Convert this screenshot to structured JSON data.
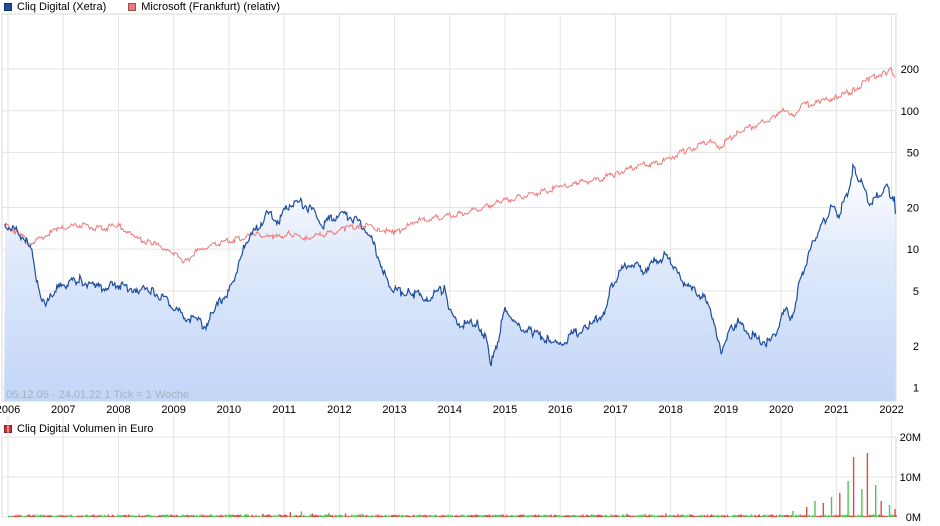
{
  "legend_top": [
    {
      "label": "Cliq Digital (Xetra)",
      "color": "#1f4e9e"
    },
    {
      "label": "Microsoft (Frankfurt) (relativ)",
      "color": "#ef7a7a"
    }
  ],
  "legend_vol": [
    {
      "label": "Cliq Digital Volumen in Euro",
      "color": "#c83232"
    }
  ],
  "info_text": "05.12.05 - 24.01.22   1 Tick = 1 Woche",
  "chart_data": [
    {
      "type": "line",
      "title": "",
      "y_scale": "log",
      "ylim": [
        0.8,
        500
      ],
      "xlim": [
        2006.0,
        2022.08
      ],
      "x_ticks": [
        "2006",
        "2007",
        "2008",
        "2009",
        "2010",
        "2011",
        "2012",
        "2013",
        "2014",
        "2015",
        "2016",
        "2017",
        "2018",
        "2019",
        "2020",
        "2021",
        "2022"
      ],
      "y_ticks": [
        1,
        2,
        5,
        10,
        20,
        50,
        100,
        200
      ],
      "grid": true,
      "series": [
        {
          "name": "Cliq Digital (Xetra)",
          "color": "#1f4e9e",
          "fill": "#c2d6f7",
          "points": [
            [
              2005.93,
              15
            ],
            [
              2006.1,
              14
            ],
            [
              2006.3,
              12
            ],
            [
              2006.45,
              9
            ],
            [
              2006.55,
              5
            ],
            [
              2006.7,
              4
            ],
            [
              2006.85,
              5
            ],
            [
              2007.0,
              5.5
            ],
            [
              2007.3,
              6
            ],
            [
              2007.6,
              5.3
            ],
            [
              2008.0,
              5.5
            ],
            [
              2008.3,
              5.2
            ],
            [
              2008.6,
              5.0
            ],
            [
              2008.8,
              4.5
            ],
            [
              2009.0,
              3.8
            ],
            [
              2009.2,
              3.2
            ],
            [
              2009.45,
              3.0
            ],
            [
              2009.6,
              2.7
            ],
            [
              2009.7,
              3.5
            ],
            [
              2009.85,
              4.2
            ],
            [
              2010.0,
              5.0
            ],
            [
              2010.15,
              7
            ],
            [
              2010.3,
              11
            ],
            [
              2010.5,
              14
            ],
            [
              2010.7,
              18
            ],
            [
              2010.9,
              16
            ],
            [
              2011.1,
              21
            ],
            [
              2011.3,
              22
            ],
            [
              2011.5,
              19
            ],
            [
              2011.7,
              15
            ],
            [
              2011.9,
              17
            ],
            [
              2012.1,
              18
            ],
            [
              2012.3,
              16
            ],
            [
              2012.5,
              14
            ],
            [
              2012.7,
              9
            ],
            [
              2012.85,
              6
            ],
            [
              2013.0,
              5
            ],
            [
              2013.3,
              4.8
            ],
            [
              2013.6,
              4.5
            ],
            [
              2013.9,
              5.2
            ],
            [
              2014.0,
              3.5
            ],
            [
              2014.2,
              2.8
            ],
            [
              2014.5,
              3.0
            ],
            [
              2014.65,
              2.3
            ],
            [
              2014.75,
              1.5
            ],
            [
              2014.85,
              2.0
            ],
            [
              2015.0,
              3.8
            ],
            [
              2015.2,
              2.8
            ],
            [
              2015.5,
              2.5
            ],
            [
              2015.8,
              2.2
            ],
            [
              2016.0,
              2.0
            ],
            [
              2016.2,
              2.4
            ],
            [
              2016.5,
              2.7
            ],
            [
              2016.8,
              3.5
            ],
            [
              2016.9,
              5
            ],
            [
              2017.1,
              7
            ],
            [
              2017.3,
              8
            ],
            [
              2017.5,
              7
            ],
            [
              2017.7,
              8
            ],
            [
              2017.9,
              9
            ],
            [
              2018.0,
              8
            ],
            [
              2018.2,
              6
            ],
            [
              2018.4,
              5
            ],
            [
              2018.6,
              4.5
            ],
            [
              2018.8,
              3
            ],
            [
              2018.9,
              1.8
            ],
            [
              2019.05,
              2.5
            ],
            [
              2019.2,
              3.0
            ],
            [
              2019.4,
              2.5
            ],
            [
              2019.6,
              2.2
            ],
            [
              2019.8,
              2.1
            ],
            [
              2019.95,
              2.8
            ],
            [
              2020.1,
              3.8
            ],
            [
              2020.2,
              3.0
            ],
            [
              2020.3,
              5
            ],
            [
              2020.45,
              8
            ],
            [
              2020.6,
              12
            ],
            [
              2020.75,
              15
            ],
            [
              2020.9,
              20
            ],
            [
              2021.05,
              18
            ],
            [
              2021.2,
              25
            ],
            [
              2021.3,
              38
            ],
            [
              2021.45,
              30
            ],
            [
              2021.6,
              22
            ],
            [
              2021.75,
              24
            ],
            [
              2021.9,
              28
            ],
            [
              2022.05,
              23
            ],
            [
              2022.07,
              18
            ]
          ]
        },
        {
          "name": "Microsoft (Frankfurt) (relativ)",
          "color": "#ef7a7a",
          "points": [
            [
              2005.93,
              15
            ],
            [
              2006.2,
              13
            ],
            [
              2006.4,
              11
            ],
            [
              2006.6,
              12
            ],
            [
              2006.9,
              14
            ],
            [
              2007.3,
              15
            ],
            [
              2007.7,
              14
            ],
            [
              2008.0,
              15
            ],
            [
              2008.3,
              12
            ],
            [
              2008.6,
              11
            ],
            [
              2008.9,
              10
            ],
            [
              2009.2,
              8
            ],
            [
              2009.4,
              9.5
            ],
            [
              2009.8,
              11
            ],
            [
              2010.2,
              12
            ],
            [
              2010.5,
              13
            ],
            [
              2010.8,
              12
            ],
            [
              2011.1,
              13
            ],
            [
              2011.4,
              12
            ],
            [
              2011.8,
              13
            ],
            [
              2012.1,
              14
            ],
            [
              2012.4,
              15
            ],
            [
              2012.7,
              14
            ],
            [
              2013.0,
              13
            ],
            [
              2013.4,
              16
            ],
            [
              2013.8,
              17
            ],
            [
              2014.2,
              18
            ],
            [
              2014.6,
              20
            ],
            [
              2014.9,
              22
            ],
            [
              2015.3,
              24
            ],
            [
              2015.7,
              26
            ],
            [
              2016.0,
              28
            ],
            [
              2016.3,
              30
            ],
            [
              2016.7,
              32
            ],
            [
              2017.0,
              35
            ],
            [
              2017.4,
              40
            ],
            [
              2017.8,
              42
            ],
            [
              2018.0,
              46
            ],
            [
              2018.3,
              52
            ],
            [
              2018.7,
              60
            ],
            [
              2018.9,
              55
            ],
            [
              2019.2,
              70
            ],
            [
              2019.6,
              80
            ],
            [
              2019.9,
              90
            ],
            [
              2020.1,
              105
            ],
            [
              2020.2,
              90
            ],
            [
              2020.4,
              110
            ],
            [
              2020.7,
              115
            ],
            [
              2021.0,
              125
            ],
            [
              2021.3,
              140
            ],
            [
              2021.6,
              170
            ],
            [
              2021.9,
              190
            ],
            [
              2022.0,
              200
            ],
            [
              2022.07,
              175
            ]
          ]
        }
      ]
    },
    {
      "type": "bar",
      "title": "Cliq Digital Volumen in Euro",
      "ylim": [
        0,
        20000000
      ],
      "y_ticks": [
        "0M",
        "10M",
        "20M"
      ],
      "y_tick_values": [
        0,
        10000000,
        20000000
      ],
      "grid": true,
      "series_colors": {
        "up": "#4fc64f",
        "down": "#e24a4a"
      },
      "bars": [
        [
          2009.3,
          500000
        ],
        [
          2010.1,
          400000
        ],
        [
          2010.3,
          600000
        ],
        [
          2010.6,
          800000
        ],
        [
          2010.9,
          700000
        ],
        [
          2011.1,
          1200000
        ],
        [
          2011.3,
          1400000
        ],
        [
          2011.5,
          900000
        ],
        [
          2011.8,
          1000000
        ],
        [
          2012.1,
          900000
        ],
        [
          2012.4,
          800000
        ],
        [
          2012.7,
          600000
        ],
        [
          2013.0,
          500000
        ],
        [
          2013.5,
          400000
        ],
        [
          2014.2,
          400000
        ],
        [
          2014.7,
          600000
        ],
        [
          2015.1,
          500000
        ],
        [
          2016.5,
          400000
        ],
        [
          2016.9,
          600000
        ],
        [
          2017.2,
          800000
        ],
        [
          2017.5,
          700000
        ],
        [
          2017.9,
          900000
        ],
        [
          2018.2,
          600000
        ],
        [
          2018.6,
          500000
        ],
        [
          2019.3,
          400000
        ],
        [
          2019.9,
          500000
        ],
        [
          2020.2,
          1500000
        ],
        [
          2020.45,
          2500000
        ],
        [
          2020.6,
          4000000
        ],
        [
          2020.75,
          3500000
        ],
        [
          2020.9,
          5000000
        ],
        [
          2021.05,
          6000000
        ],
        [
          2021.2,
          9000000
        ],
        [
          2021.3,
          15000000
        ],
        [
          2021.45,
          7000000
        ],
        [
          2021.55,
          16000000
        ],
        [
          2021.7,
          8000000
        ],
        [
          2021.8,
          4000000
        ],
        [
          2021.95,
          3000000
        ],
        [
          2022.05,
          2000000
        ]
      ]
    }
  ]
}
